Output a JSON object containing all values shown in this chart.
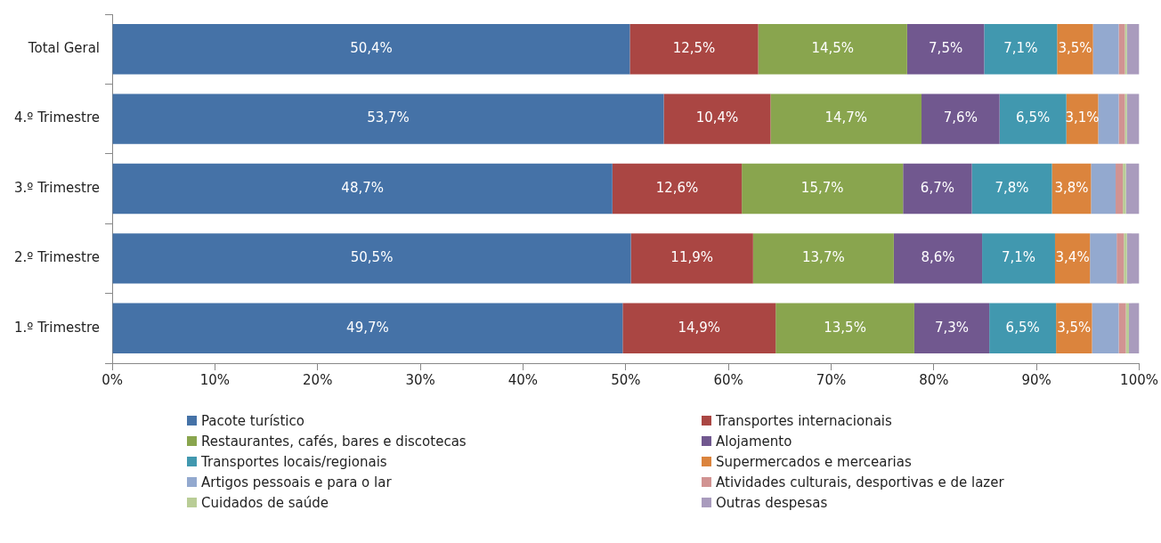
{
  "chart_data": {
    "type": "bar",
    "orientation": "horizontal",
    "stacked": true,
    "categories": [
      "Total Geral",
      "4.º Trimestre",
      "3.º Trimestre",
      "2.º Trimestre",
      "1.º Trimestre"
    ],
    "xlim": [
      0,
      100
    ],
    "xticks": [
      {
        "value": 0,
        "label": "0%"
      },
      {
        "value": 10,
        "label": "10%"
      },
      {
        "value": 20,
        "label": "20%"
      },
      {
        "value": 30,
        "label": "30%"
      },
      {
        "value": 40,
        "label": "40%"
      },
      {
        "value": 50,
        "label": "50%"
      },
      {
        "value": 60,
        "label": "60%"
      },
      {
        "value": 70,
        "label": "70%"
      },
      {
        "value": 80,
        "label": "80%"
      },
      {
        "value": 90,
        "label": "90%"
      },
      {
        "value": 100,
        "label": "100%"
      }
    ],
    "grid": false,
    "legend": "bottom",
    "series": [
      {
        "name": "Pacote turístico",
        "color": "#4572a7",
        "values": [
          50.4,
          53.7,
          48.7,
          50.5,
          49.7
        ],
        "value_labels": [
          "50,4%",
          "53,7%",
          "48,7%",
          "50,5%",
          "49,7%"
        ]
      },
      {
        "name": "Transportes internacionais",
        "color": "#aa4643",
        "values": [
          12.5,
          10.4,
          12.6,
          11.9,
          14.9
        ],
        "value_labels": [
          "12,5%",
          "10,4%",
          "12,6%",
          "11,9%",
          "14,9%"
        ]
      },
      {
        "name": "Restaurantes, cafés, bares e discotecas",
        "color": "#89a54e",
        "values": [
          14.5,
          14.7,
          15.7,
          13.7,
          13.5
        ],
        "value_labels": [
          "14,5%",
          "14,7%",
          "15,7%",
          "13,7%",
          "13,5%"
        ]
      },
      {
        "name": "Alojamento",
        "color": "#71588f",
        "values": [
          7.5,
          7.6,
          6.7,
          8.6,
          7.3
        ],
        "value_labels": [
          "7,5%",
          "7,6%",
          "6,7%",
          "8,6%",
          "7,3%"
        ]
      },
      {
        "name": "Transportes locais/regionais",
        "color": "#4198af",
        "values": [
          7.1,
          6.5,
          7.8,
          7.1,
          6.5
        ],
        "value_labels": [
          "7,1%",
          "6,5%",
          "7,8%",
          "7,1%",
          "6,5%"
        ]
      },
      {
        "name": "Supermercados e mercearias",
        "color": "#db843d",
        "values": [
          3.5,
          3.1,
          3.8,
          3.4,
          3.5
        ],
        "value_labels": [
          "3,5%",
          "3,1%",
          "3,8%",
          "3,4%",
          "3,5%"
        ]
      },
      {
        "name": "Artigos pessoais e para o lar",
        "color": "#93a9cf",
        "values": [
          2.5,
          2.0,
          2.4,
          2.6,
          2.6
        ]
      },
      {
        "name": "Atividades culturais, desportivas e de lazer",
        "color": "#d19392",
        "values": [
          0.6,
          0.6,
          0.7,
          0.7,
          0.7
        ]
      },
      {
        "name": "Cuidados de saúde",
        "color": "#b9cd96",
        "values": [
          0.2,
          0.2,
          0.3,
          0.3,
          0.3
        ]
      },
      {
        "name": "Outras despesas",
        "color": "#a99bbd",
        "values": [
          1.2,
          1.2,
          1.3,
          1.2,
          1.0
        ]
      }
    ]
  }
}
